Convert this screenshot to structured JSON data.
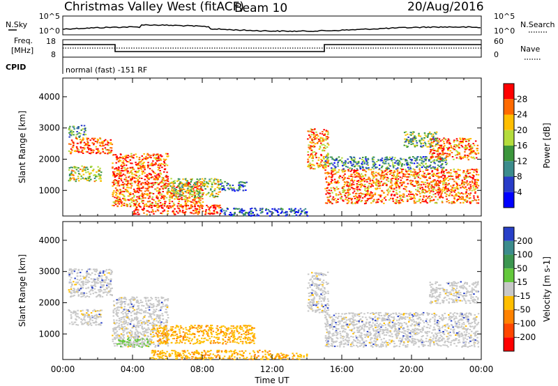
{
  "header": {
    "station": "Christmas Valley West (fitACF)",
    "beam": "Beam 10",
    "date": "20/Aug/2016"
  },
  "top_panel": {
    "left_label": "N.Sky",
    "left_ticks": [
      "10^5",
      "10^0"
    ],
    "right_ticks": [
      "10^5",
      "10^0"
    ],
    "right_label": "N.Search"
  },
  "freq_panel": {
    "left_label_1": "Freq.",
    "left_label_2": "[MHz]",
    "left_ticks": [
      "18",
      "8"
    ],
    "right_ticks": [
      "60",
      "0"
    ],
    "right_label": "Nave",
    "cpid_label": "CPID",
    "cpid_text": "normal (fast) -151 RF"
  },
  "chart_data": [
    {
      "type": "heatmap",
      "name": "Power",
      "ylabel": "Slant Range [km]",
      "ylim": [
        180,
        4600
      ],
      "yticks": [
        1000,
        2000,
        3000,
        4000
      ],
      "xlabel": "Time UT",
      "xlim_hours": [
        0,
        24
      ],
      "xticks": [
        "00:00",
        "04:00",
        "08:00",
        "12:00",
        "16:00",
        "20:00",
        "00:00"
      ],
      "colorbar": {
        "label": "Power [dB]",
        "tick_labels": [
          "28",
          "24",
          "20",
          "16",
          "12",
          "8",
          "4"
        ],
        "colors": [
          "#ff0000",
          "#ff6a00",
          "#ffbe00",
          "#b4dc3c",
          "#3c963c",
          "#3c8c8c",
          "#283cc8",
          "#0000ff"
        ]
      },
      "regions": [
        {
          "t": [
            0.3,
            2.8
          ],
          "r": [
            2200,
            2700
          ],
          "level": 0.85
        },
        {
          "t": [
            0.3,
            1.3
          ],
          "r": [
            2700,
            3100
          ],
          "level": 0.4
        },
        {
          "t": [
            0.3,
            2.2
          ],
          "r": [
            1300,
            1800
          ],
          "level": 0.55
        },
        {
          "t": [
            2.8,
            6.0
          ],
          "r": [
            1200,
            2200
          ],
          "level": 0.85
        },
        {
          "t": [
            2.8,
            8.0
          ],
          "r": [
            500,
            1300
          ],
          "level": 0.8
        },
        {
          "t": [
            6.0,
            9.0
          ],
          "r": [
            800,
            1400
          ],
          "level": 0.55
        },
        {
          "t": [
            9.0,
            10.5
          ],
          "r": [
            1000,
            1300
          ],
          "level": 0.3
        },
        {
          "t": [
            4.0,
            9.0
          ],
          "r": [
            250,
            550
          ],
          "level": 0.9
        },
        {
          "t": [
            9.0,
            14.0
          ],
          "r": [
            200,
            450
          ],
          "level": 0.2
        },
        {
          "t": [
            14.0,
            15.2
          ],
          "r": [
            1700,
            3000
          ],
          "level": 0.75
        },
        {
          "t": [
            15.0,
            23.8
          ],
          "r": [
            600,
            1700
          ],
          "level": 0.8
        },
        {
          "t": [
            15.0,
            22.0
          ],
          "r": [
            1700,
            2100
          ],
          "level": 0.35
        },
        {
          "t": [
            21.0,
            23.8
          ],
          "r": [
            2000,
            2700
          ],
          "level": 0.8
        },
        {
          "t": [
            19.5,
            21.5
          ],
          "r": [
            2400,
            2900
          ],
          "level": 0.45
        }
      ]
    },
    {
      "type": "heatmap",
      "name": "Velocity",
      "ylabel": "Slant Range [km]",
      "ylim": [
        180,
        4600
      ],
      "yticks": [
        1000,
        2000,
        3000,
        4000
      ],
      "xlabel": "Time UT",
      "xlim_hours": [
        0,
        24
      ],
      "xticks": [
        "00:00",
        "04:00",
        "08:00",
        "12:00",
        "16:00",
        "20:00",
        "00:00"
      ],
      "colorbar": {
        "label": "Velocity [m s-1]",
        "tick_labels": [
          "200",
          "100",
          "50",
          "15",
          "-15",
          "-50",
          "-100",
          "-200"
        ],
        "colors": [
          "#2840c8",
          "#3c8c8c",
          "#3c9650",
          "#64c83c",
          "#c8c8c8",
          "#ffbe00",
          "#ff8200",
          "#ff4600",
          "#ff0000"
        ]
      },
      "regions": [
        {
          "t": [
            0.3,
            2.8
          ],
          "r": [
            2200,
            3100
          ],
          "cat": "gray"
        },
        {
          "t": [
            0.3,
            2.2
          ],
          "r": [
            1300,
            1800
          ],
          "cat": "gray"
        },
        {
          "t": [
            2.8,
            6.0
          ],
          "r": [
            1200,
            2200
          ],
          "cat": "gray"
        },
        {
          "t": [
            2.8,
            6.0
          ],
          "r": [
            600,
            1200
          ],
          "cat": "gray"
        },
        {
          "t": [
            3.0,
            5.0
          ],
          "r": [
            600,
            900
          ],
          "cat": "green"
        },
        {
          "t": [
            5.0,
            11.0
          ],
          "r": [
            700,
            1300
          ],
          "cat": "orange"
        },
        {
          "t": [
            5.0,
            12.0
          ],
          "r": [
            200,
            500
          ],
          "cat": "orange"
        },
        {
          "t": [
            12.0,
            14.0
          ],
          "r": [
            200,
            400
          ],
          "cat": "orange"
        },
        {
          "t": [
            14.0,
            15.2
          ],
          "r": [
            1700,
            3000
          ],
          "cat": "gray"
        },
        {
          "t": [
            15.0,
            23.8
          ],
          "r": [
            600,
            1700
          ],
          "cat": "gray"
        },
        {
          "t": [
            21.0,
            23.8
          ],
          "r": [
            2000,
            2700
          ],
          "cat": "gray"
        }
      ]
    }
  ]
}
